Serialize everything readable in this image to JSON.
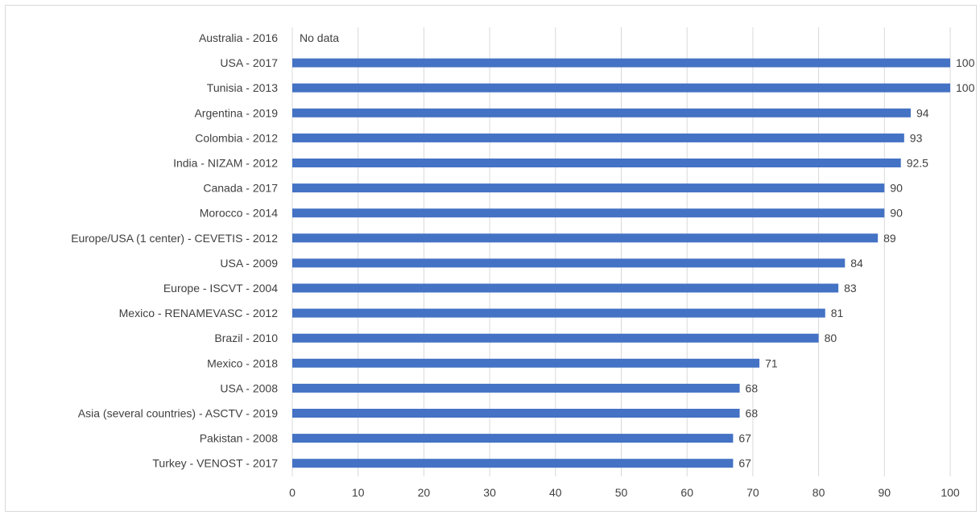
{
  "chart_data": {
    "type": "bar",
    "orientation": "horizontal",
    "categories": [
      "Australia - 2016",
      "USA - 2017",
      "Tunisia - 2013",
      "Argentina - 2019",
      "Colombia - 2012",
      "India - NIZAM - 2012",
      "Canada - 2017",
      "Morocco - 2014",
      "Europe/USA (1 center) - CEVETIS - 2012",
      "USA - 2009",
      "Europe - ISCVT - 2004",
      "Mexico - RENAMEVASC - 2012",
      "Brazil - 2010",
      "Mexico - 2018",
      "USA - 2008",
      "Asia (several countries) - ASCTV - 2019",
      "Pakistan - 2008",
      "Turkey - VENOST - 2017"
    ],
    "values": [
      null,
      100,
      100,
      94,
      93,
      92.5,
      90,
      90,
      89,
      84,
      83,
      81,
      80,
      71,
      68,
      68,
      67,
      67
    ],
    "data_labels": [
      "No data",
      "100",
      "100",
      "94",
      "93",
      "92.5",
      "90",
      "90",
      "89",
      "84",
      "83",
      "81",
      "80",
      "71",
      "68",
      "68",
      "67",
      "67"
    ],
    "title": "",
    "xlabel": "",
    "ylabel": "",
    "xlim": [
      0,
      100
    ],
    "xticks": [
      "0",
      "10",
      "20",
      "30",
      "40",
      "50",
      "60",
      "70",
      "80",
      "90",
      "100"
    ],
    "grid": "vertical",
    "legend": "none",
    "bar_color": "#4472c4",
    "grid_color": "#d9d9d9"
  }
}
